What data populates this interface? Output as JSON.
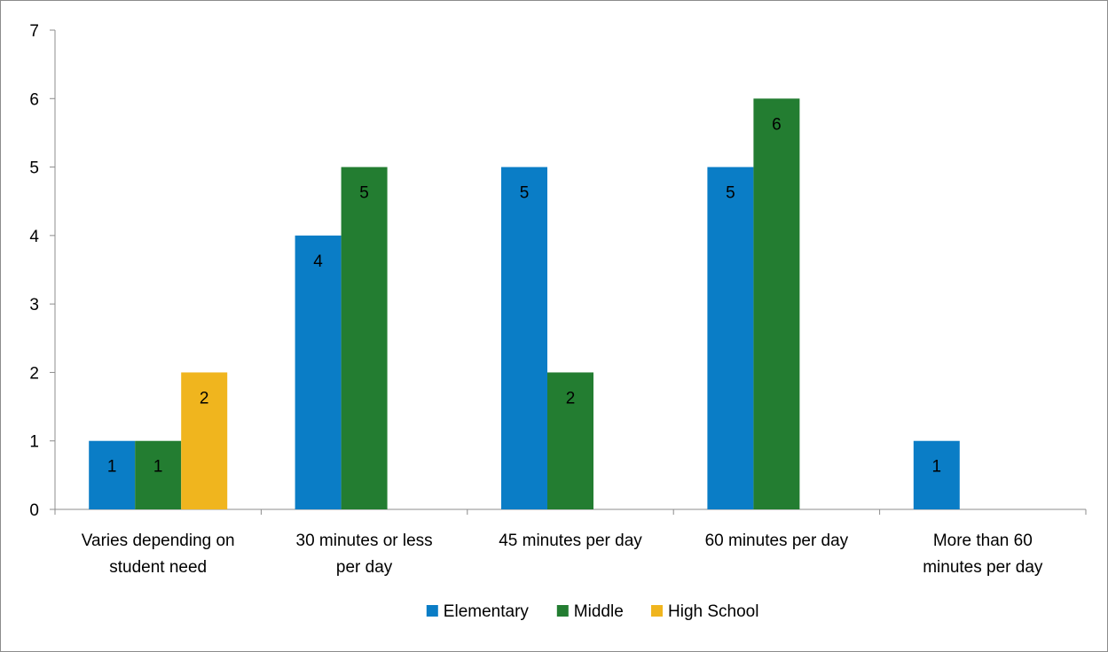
{
  "chart_data": {
    "type": "bar",
    "categories": [
      [
        "Varies depending on",
        "student need"
      ],
      [
        "30 minutes or less",
        "per day"
      ],
      [
        "45 minutes per day"
      ],
      [
        "60 minutes per day"
      ],
      [
        "More than 60",
        "minutes per day"
      ]
    ],
    "series": [
      {
        "name": "Elementary",
        "color": "#0a7dc6",
        "values": [
          1,
          4,
          5,
          5,
          1
        ]
      },
      {
        "name": "Middle",
        "color": "#237d31",
        "values": [
          1,
          5,
          2,
          6,
          null
        ]
      },
      {
        "name": "High School",
        "color": "#f0b51e",
        "values": [
          2,
          null,
          null,
          null,
          null
        ]
      }
    ],
    "ylim": [
      0,
      7
    ],
    "yticks": [
      0,
      1,
      2,
      3,
      4,
      5,
      6,
      7
    ],
    "legend_position": "bottom",
    "grid": false,
    "title": "",
    "xlabel": "",
    "ylabel": ""
  }
}
